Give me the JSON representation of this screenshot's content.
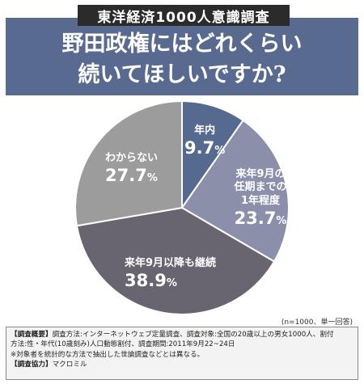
{
  "badge": "東洋経済1000人意識調査",
  "headline": {
    "line1": "野田政権にはどれくらい",
    "line2": "続いてほしいですか?"
  },
  "chart_data": {
    "type": "pie",
    "title": "野田政権にはどれくらい続いてほしいですか?",
    "slices": [
      {
        "label": "年内",
        "value": 9.7,
        "color": "#556a8e"
      },
      {
        "label": "来年9月の任期までの1年程度",
        "label_lines": [
          "来年9月の",
          "任期までの",
          "1年程度"
        ],
        "value": 23.7,
        "color": "#8b8fa9"
      },
      {
        "label": "来年9月以降も継続",
        "value": 38.9,
        "color": "#686470"
      },
      {
        "label": "わからない",
        "value": 27.7,
        "color": "#9c9c9c"
      }
    ],
    "unit": "%",
    "note": "(n=1000、単一回答)"
  },
  "footer": {
    "line1_label": "【調査概要】",
    "line1": "調査方法:インターネットウェブ定量調査、調査対象:全国の20歳以上の男女1000人、割付",
    "line2": "方法:性・年代(10歳刻み)人口動態割付、調査期間:2011年9月22~24日",
    "line3": "※対象者を統計的な方法で抽出した世論調査などとは異なる。",
    "line4_label": "【調査協力】",
    "line4": "マクロミル"
  }
}
